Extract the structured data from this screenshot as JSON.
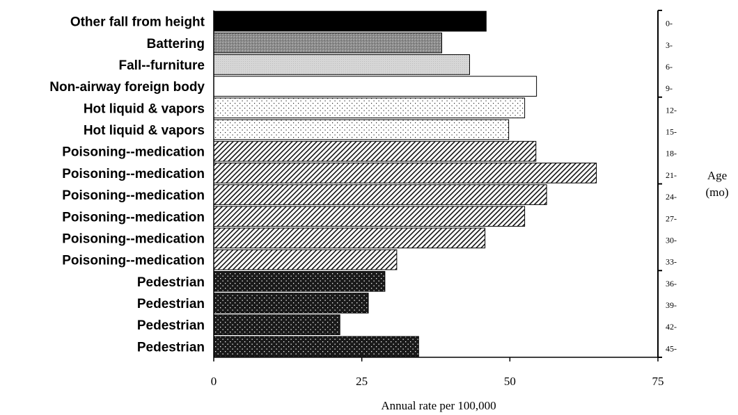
{
  "chart_data": {
    "type": "bar",
    "orientation": "horizontal",
    "xlabel": "Annual rate per 100,000",
    "xlim": [
      0,
      75
    ],
    "xticks": [
      "0",
      "25",
      "50",
      "75"
    ],
    "right_axis_title": [
      "Age",
      "(mo)"
    ],
    "grid": false,
    "bars": [
      {
        "label": "Other fall from height",
        "age": "0-",
        "value": 46.0,
        "pattern": "solid-black"
      },
      {
        "label": "Battering",
        "age": "3-",
        "value": 38.5,
        "pattern": "gray-stipple"
      },
      {
        "label": "Fall--furniture",
        "age": "6-",
        "value": 43.2,
        "pattern": "light-gray"
      },
      {
        "label": "Non-airway foreign body",
        "age": "9-",
        "value": 54.5,
        "pattern": "white"
      },
      {
        "label": "Hot liquid & vapors",
        "age": "12-",
        "value": 52.5,
        "pattern": "dots"
      },
      {
        "label": "Hot liquid & vapors",
        "age": "15-",
        "value": 49.8,
        "pattern": "dots"
      },
      {
        "label": "Poisoning--medication",
        "age": "18-",
        "value": 54.4,
        "pattern": "diagonal"
      },
      {
        "label": "Poisoning--medication",
        "age": "21-",
        "value": 64.6,
        "pattern": "diagonal"
      },
      {
        "label": "Poisoning--medication",
        "age": "24-",
        "value": 56.2,
        "pattern": "diagonal"
      },
      {
        "label": "Poisoning--medication",
        "age": "27-",
        "value": 52.5,
        "pattern": "diagonal"
      },
      {
        "label": "Poisoning--medication",
        "age": "30-",
        "value": 45.8,
        "pattern": "diagonal"
      },
      {
        "label": "Poisoning--medication",
        "age": "33-",
        "value": 30.9,
        "pattern": "diagonal"
      },
      {
        "label": "Pedestrian",
        "age": "36-",
        "value": 28.9,
        "pattern": "dark-dots"
      },
      {
        "label": "Pedestrian",
        "age": "39-",
        "value": 26.1,
        "pattern": "dark-dots"
      },
      {
        "label": "Pedestrian",
        "age": "42-",
        "value": 21.3,
        "pattern": "dark-dots"
      },
      {
        "label": "Pedestrian",
        "age": "45-",
        "value": 34.6,
        "pattern": "dark-dots"
      }
    ]
  }
}
